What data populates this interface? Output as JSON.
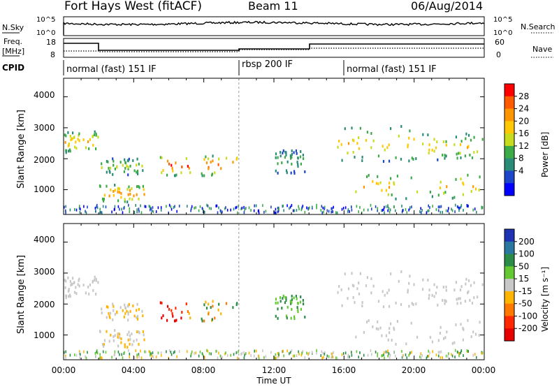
{
  "header": {
    "station": "Fort Hays West (fitACF)",
    "beam": "Beam 11",
    "date": "06/Aug/2014"
  },
  "left_labels": {
    "nsky": "N.Sky",
    "freq_line1": "Freq.",
    "freq_line2": "[MHz]",
    "cpid": "CPID"
  },
  "right_labels": {
    "nsearch": "N.Search",
    "nave": "Nave"
  },
  "noise_axis": {
    "ticks_left": [
      "10^5",
      "10^0"
    ],
    "ticks_right": [
      "10^5",
      "10^0"
    ]
  },
  "freq_axis": {
    "ticks_left": [
      "18",
      "8"
    ],
    "ticks_right": [
      "60",
      "0"
    ]
  },
  "cpid_segments": [
    {
      "label": "normal (fast) 151 IF",
      "start": 0,
      "end": 10
    },
    {
      "label": "rbsp 200 IF",
      "start": 10,
      "end": 16
    },
    {
      "label": "normal (fast) 151 IF",
      "start": 16,
      "end": 24
    }
  ],
  "x_axis": {
    "label": "Time UT",
    "ticks": [
      "00:00",
      "04:00",
      "08:00",
      "12:00",
      "16:00",
      "20:00",
      "00:00"
    ]
  },
  "y_axis": {
    "label": "Slant Range [km]",
    "ticks": [
      "4000",
      "3000",
      "2000",
      "1000"
    ]
  },
  "power_scale": {
    "label": "Power [dB]",
    "ticks": [
      "28",
      "24",
      "20",
      "16",
      "12",
      "8",
      "4"
    ],
    "colors": [
      "#ff0000",
      "#ff5a00",
      "#ff9600",
      "#ffc800",
      "#c8dc1e",
      "#3caa46",
      "#2a8c78",
      "#1e46c8",
      "#0000ff"
    ]
  },
  "velocity_scale": {
    "label": "Velocity [m s⁻¹]",
    "ticks": [
      "200",
      "100",
      "50",
      "15",
      "-15",
      "-50",
      "-100",
      "-200"
    ],
    "colors": [
      "#1e32b4",
      "#2a78a0",
      "#2a8c46",
      "#64c832",
      "#c8c8c8",
      "#ffb400",
      "#ff7800",
      "#ff2800",
      "#e60000"
    ]
  },
  "chart_data": {
    "type": "heatmap",
    "title": "Fort Hays West (fitACF)",
    "xlabel": "Time UT",
    "ylabel": "Slant Range [km]",
    "xlim": [
      0,
      24
    ],
    "ylim": [
      200,
      4600
    ],
    "power_blobs": [
      {
        "t0": 0.0,
        "t1": 2.0,
        "r0": 2200,
        "r1": 2900,
        "peak": 20
      },
      {
        "t0": 2.0,
        "t1": 4.6,
        "r0": 1450,
        "r1": 2000,
        "peak": 14
      },
      {
        "t0": 2.0,
        "t1": 4.6,
        "r0": 600,
        "r1": 1150,
        "peak": 24
      },
      {
        "t0": 5.4,
        "t1": 10.0,
        "r0": 1450,
        "r1": 2100,
        "peak": 28
      },
      {
        "t0": 12.0,
        "t1": 13.8,
        "r0": 1500,
        "r1": 2300,
        "peak": 10
      },
      {
        "t0": 15.6,
        "t1": 20.0,
        "r0": 1900,
        "r1": 3100,
        "peak": 18
      },
      {
        "t0": 20.0,
        "t1": 24.0,
        "r0": 1950,
        "r1": 2800,
        "peak": 18
      },
      {
        "t0": 16.0,
        "t1": 24.0,
        "r0": 700,
        "r1": 1500,
        "peak": 20
      }
    ]
  }
}
